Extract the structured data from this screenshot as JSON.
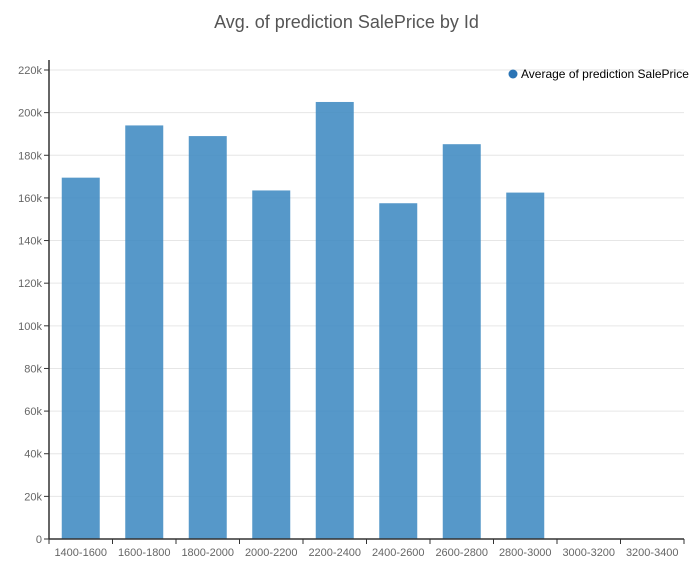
{
  "chart_data": {
    "type": "bar",
    "title": "Avg. of prediction SalePrice by Id",
    "xlabel": "",
    "ylabel": "",
    "categories": [
      "1400-1600",
      "1600-1800",
      "1800-2000",
      "2000-2200",
      "2200-2400",
      "2400-2600",
      "2600-2800",
      "2800-3000",
      "3000-3200",
      "3200-3400"
    ],
    "series": [
      {
        "name": "Average of prediction SalePrice",
        "values": [
          169500,
          194000,
          189000,
          163500,
          205000,
          157500,
          185200,
          162500,
          null,
          null
        ]
      }
    ],
    "ylim": [
      0,
      220000
    ],
    "yticks": [
      "0",
      "20k",
      "40k",
      "60k",
      "80k",
      "100k",
      "120k",
      "140k",
      "160k",
      "180k",
      "200k",
      "220k"
    ],
    "grid": true,
    "legend_position": "top-right",
    "colors": {
      "bar": "#3f8ac2",
      "axis": "#333333",
      "grid": "#e6e6e6",
      "tick_label": "#666666",
      "title": "#555555",
      "legend_dot": "#2a74b5"
    }
  }
}
